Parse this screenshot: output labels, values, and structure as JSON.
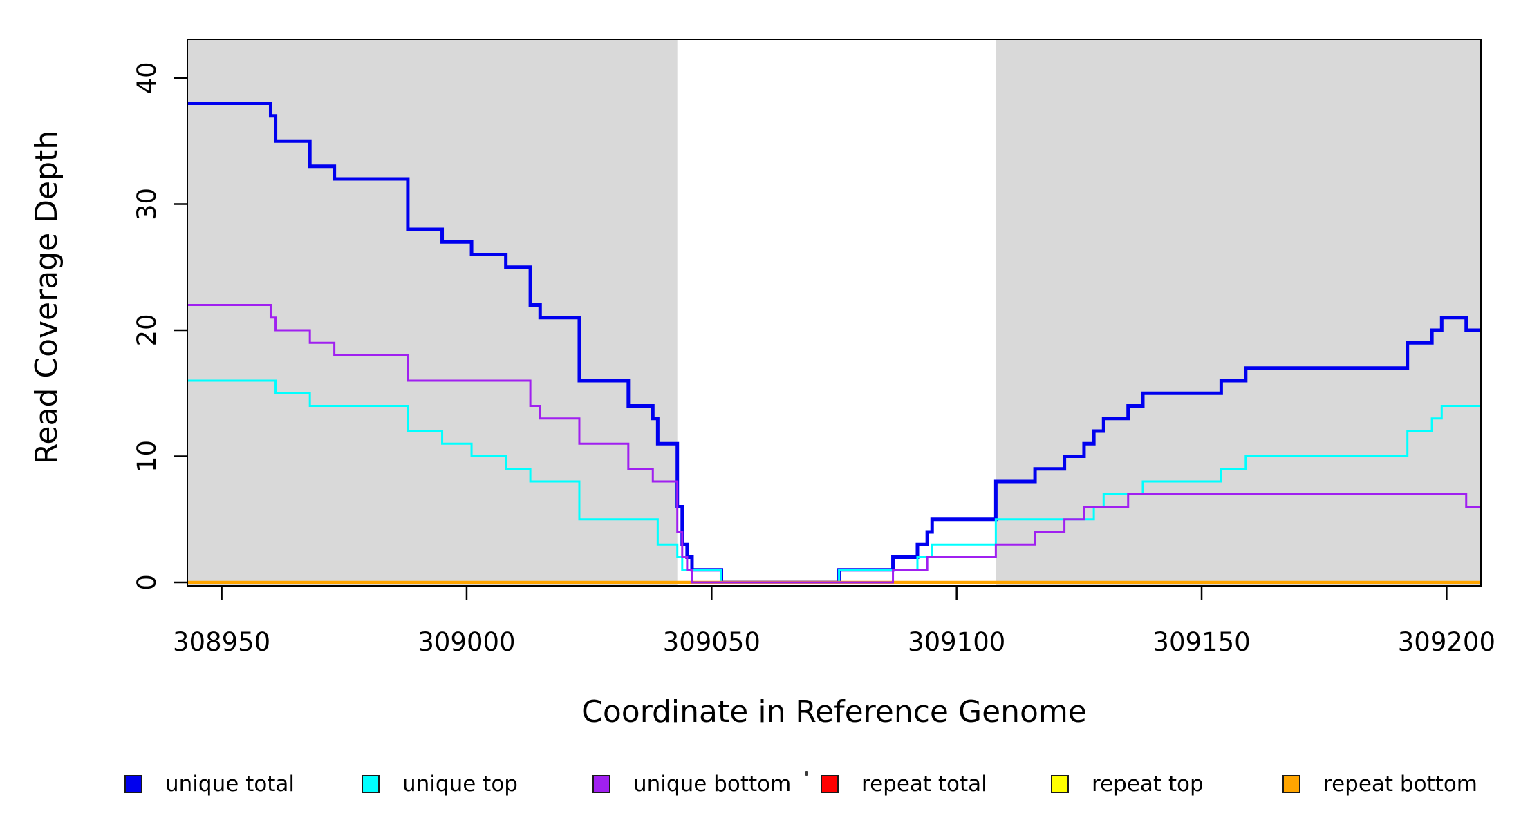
{
  "chart_data": {
    "type": "line",
    "subtype": "step-post",
    "title": "",
    "xlabel": "Coordinate in Reference Genome",
    "ylabel": "Read Coverage Depth",
    "xlim": [
      308943,
      309207
    ],
    "ylim": [
      0,
      43
    ],
    "x_ticks": [
      308950,
      309000,
      309050,
      309100,
      309150,
      309200
    ],
    "y_ticks": [
      0,
      10,
      20,
      30,
      40
    ],
    "grid": false,
    "legend_position": "bottom",
    "plot_bg": "#ffffff",
    "shaded_bands": {
      "color": "#D9D9D9",
      "ranges": [
        [
          308943,
          309043
        ],
        [
          309108,
          309207
        ]
      ]
    },
    "x_end": 309207,
    "series": [
      {
        "name": "unique total",
        "color": "#0000EE",
        "width": 5,
        "steps": [
          [
            308943,
            38
          ],
          [
            308960,
            37
          ],
          [
            308961,
            35
          ],
          [
            308968,
            33
          ],
          [
            308973,
            32
          ],
          [
            308988,
            28
          ],
          [
            308995,
            27
          ],
          [
            309001,
            26
          ],
          [
            309008,
            25
          ],
          [
            309013,
            22
          ],
          [
            309015,
            21
          ],
          [
            309023,
            16
          ],
          [
            309033,
            14
          ],
          [
            309038,
            13
          ],
          [
            309039,
            11
          ],
          [
            309043,
            6
          ],
          [
            309044,
            3
          ],
          [
            309045,
            2
          ],
          [
            309046,
            1
          ],
          [
            309052,
            0
          ],
          [
            309076,
            1
          ],
          [
            309087,
            2
          ],
          [
            309092,
            3
          ],
          [
            309094,
            4
          ],
          [
            309095,
            5
          ],
          [
            309108,
            8
          ],
          [
            309116,
            9
          ],
          [
            309122,
            10
          ],
          [
            309126,
            11
          ],
          [
            309128,
            12
          ],
          [
            309130,
            13
          ],
          [
            309135,
            14
          ],
          [
            309138,
            15
          ],
          [
            309154,
            16
          ],
          [
            309159,
            17
          ],
          [
            309192,
            19
          ],
          [
            309197,
            20
          ],
          [
            309199,
            21
          ],
          [
            309204,
            20
          ]
        ]
      },
      {
        "name": "unique top",
        "color": "#00FFFF",
        "width": 3,
        "steps": [
          [
            308943,
            16
          ],
          [
            308961,
            15
          ],
          [
            308968,
            14
          ],
          [
            308988,
            12
          ],
          [
            308995,
            11
          ],
          [
            309001,
            10
          ],
          [
            309008,
            9
          ],
          [
            309013,
            8
          ],
          [
            309023,
            5
          ],
          [
            309039,
            3
          ],
          [
            309043,
            2
          ],
          [
            309044,
            1
          ],
          [
            309052,
            0
          ],
          [
            309076,
            1
          ],
          [
            309092,
            2
          ],
          [
            309095,
            3
          ],
          [
            309108,
            5
          ],
          [
            309128,
            6
          ],
          [
            309130,
            7
          ],
          [
            309138,
            8
          ],
          [
            309154,
            9
          ],
          [
            309159,
            10
          ],
          [
            309192,
            12
          ],
          [
            309197,
            13
          ],
          [
            309199,
            14
          ]
        ]
      },
      {
        "name": "unique bottom",
        "color": "#A020F0",
        "width": 3,
        "steps": [
          [
            308943,
            22
          ],
          [
            308960,
            21
          ],
          [
            308961,
            20
          ],
          [
            308968,
            19
          ],
          [
            308973,
            18
          ],
          [
            308988,
            16
          ],
          [
            309013,
            14
          ],
          [
            309015,
            13
          ],
          [
            309023,
            11
          ],
          [
            309033,
            9
          ],
          [
            309038,
            8
          ],
          [
            309043,
            4
          ],
          [
            309044,
            2
          ],
          [
            309045,
            1
          ],
          [
            309046,
            0
          ],
          [
            309087,
            1
          ],
          [
            309094,
            2
          ],
          [
            309108,
            3
          ],
          [
            309116,
            4
          ],
          [
            309122,
            5
          ],
          [
            309126,
            6
          ],
          [
            309135,
            7
          ],
          [
            309204,
            6
          ]
        ]
      },
      {
        "name": "repeat total",
        "color": "#FF0000",
        "width": 3,
        "steps": [
          [
            308943,
            0
          ]
        ]
      },
      {
        "name": "repeat top",
        "color": "#FFFF00",
        "width": 3,
        "steps": [
          [
            308943,
            0
          ]
        ]
      },
      {
        "name": "repeat bottom",
        "color": "#FFA500",
        "width": 4.5,
        "steps": [
          [
            308943,
            0
          ]
        ]
      }
    ]
  },
  "legend": {
    "items": [
      {
        "label": "unique total",
        "color": "#0000EE"
      },
      {
        "label": "unique top",
        "color": "#00FFFF"
      },
      {
        "label": "unique bottom",
        "color": "#A020F0"
      },
      {
        "label": "repeat total",
        "color": "#FF0000"
      },
      {
        "label": "repeat top",
        "color": "#FFFF00"
      },
      {
        "label": "repeat bottom",
        "color": "#FFA500"
      }
    ]
  }
}
